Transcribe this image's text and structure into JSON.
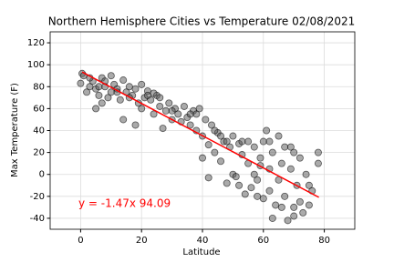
{
  "chart_data": {
    "type": "scatter",
    "title": "Northern Hemisphere Cities vs Temperature 02/08/2021",
    "x_label": "Latitude",
    "y_label": "Max Temperature (F)",
    "xlim": [
      -10,
      90
    ],
    "ylim": [
      -50,
      130
    ],
    "xticks": [
      0,
      20,
      40,
      60,
      80
    ],
    "yticks": [
      -40,
      -20,
      0,
      20,
      40,
      60,
      80,
      100,
      120
    ],
    "grid": true,
    "series": [
      {
        "color": "#555555",
        "x": [
          0,
          0.5,
          1,
          2,
          3,
          4,
          5,
          5,
          6,
          7,
          7,
          8,
          9,
          10,
          10,
          11,
          12,
          13,
          14,
          14,
          15,
          16,
          17,
          18,
          18,
          19,
          20,
          20,
          21,
          22,
          23,
          24,
          25,
          26,
          27,
          28,
          29,
          30,
          31,
          32,
          33,
          34,
          35,
          36,
          37,
          38,
          38,
          39,
          40,
          40,
          41,
          42,
          42,
          43,
          44,
          45,
          46,
          47,
          48,
          49,
          50,
          50,
          51,
          52,
          53,
          54,
          55,
          55,
          56,
          57,
          58,
          59,
          60,
          60,
          61,
          62,
          62,
          63,
          64,
          65,
          65,
          66,
          67,
          67,
          68,
          69,
          70,
          70,
          71,
          72,
          72,
          73,
          74,
          75,
          76,
          78,
          78,
          62,
          58,
          53,
          48,
          44,
          36,
          30,
          26,
          24,
          22,
          16,
          12,
          8,
          6,
          3,
          66,
          63,
          70,
          75,
          69,
          59,
          57,
          46,
          52
        ],
        "values": [
          83,
          92,
          90,
          75,
          80,
          85,
          78,
          60,
          72,
          88,
          65,
          80,
          70,
          90,
          75,
          82,
          78,
          68,
          86,
          50,
          75,
          80,
          72,
          45,
          78,
          65,
          82,
          60,
          70,
          76,
          68,
          55,
          72,
          62,
          42,
          58,
          65,
          50,
          60,
          55,
          48,
          62,
          52,
          45,
          58,
          40,
          55,
          60,
          35,
          15,
          50,
          27,
          -3,
          45,
          20,
          38,
          12,
          30,
          -8,
          25,
          35,
          0,
          -2,
          28,
          18,
          -18,
          10,
          30,
          -12,
          25,
          -5,
          15,
          30,
          -22,
          40,
          5,
          -15,
          20,
          -28,
          35,
          -5,
          10,
          -20,
          25,
          -42,
          5,
          -30,
          20,
          -10,
          15,
          -25,
          -35,
          0,
          -28,
          -15,
          20,
          10,
          30,
          -20,
          30,
          30,
          40,
          55,
          58,
          70,
          74,
          72,
          70,
          75,
          85,
          80,
          88,
          -30,
          -40,
          -38,
          -10,
          25,
          8,
          0,
          35,
          -10
        ]
      }
    ],
    "regression": {
      "color": "#ff0000",
      "x": [
        0.5,
        78.2
      ],
      "values": [
        93.35,
        -20.86
      ]
    },
    "annotation": {
      "text": "y = -1.47x 94.09",
      "color": "#ff0000"
    }
  }
}
